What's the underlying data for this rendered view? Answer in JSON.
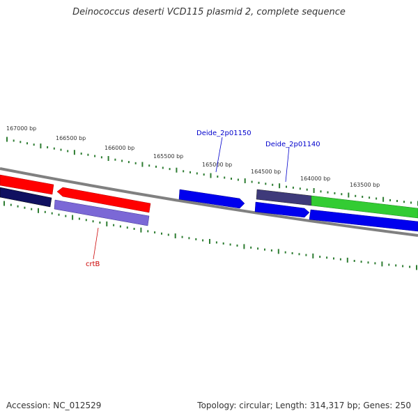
{
  "title": "Deinococcus deserti VCD115 plasmid 2, complete sequence",
  "footer": {
    "accession": "Accession: NC_012529",
    "summary": "Topology: circular; Length: 314,317 bp; Genes: 250"
  },
  "ruler": {
    "labels": [
      "167000 bp",
      "166500 bp",
      "166000 bp",
      "165500 bp",
      "165000 bp",
      "164500 bp",
      "164000 bp",
      "163500 bp"
    ],
    "tick_color": "#2e7d32"
  },
  "gene_labels": {
    "deide_2p01150": "Deide_2p01150",
    "deide_2p01140": "Deide_2p01140",
    "crtb": "crtB"
  },
  "colors": {
    "backbone": "#808080",
    "red": "#ff0000",
    "navy": "#101060",
    "lavender": "#7b68d6",
    "blue": "#0000ee",
    "slate": "#3e3a7a",
    "green": "#33cc33",
    "label_blue": "#0000cc",
    "label_red": "#cc0000"
  }
}
